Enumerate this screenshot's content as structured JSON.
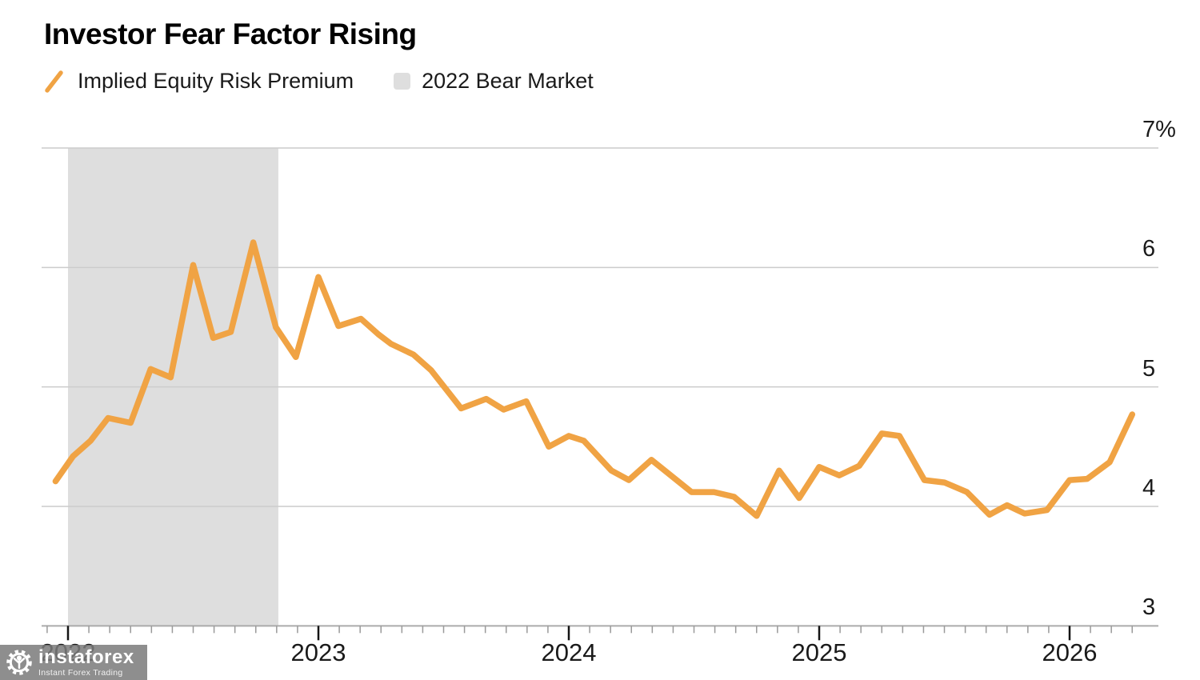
{
  "title": "Investor Fear Factor Rising",
  "legend": [
    {
      "label": "Implied Equity Risk Premium",
      "marker": "line-slash",
      "color": "#F0A344"
    },
    {
      "label": "2022 Bear Market",
      "marker": "square",
      "color": "#DEDEDE"
    }
  ],
  "watermark": {
    "brand": "instaforex",
    "tagline": "Instant Forex Trading",
    "icon": "gear-person-icon"
  },
  "chart_data": {
    "type": "line",
    "title": "Investor Fear Factor Rising",
    "grid": "horizontal",
    "legend_position": "top-left",
    "ylim": [
      3,
      7
    ],
    "xlim": [
      2021.89,
      2026.44
    ],
    "x_minor_ticks": "monthly",
    "colors": {
      "line": "#F0A344",
      "band": "#DEDEDE",
      "grid": "#CCCCCC",
      "axis": "#ABABAB",
      "major_tick": "#141414",
      "minor_tick": "#9A9A9A"
    },
    "y_ticks": [
      {
        "label": "7%",
        "value": 7
      },
      {
        "label": "6",
        "value": 6
      },
      {
        "label": "5",
        "value": 5
      },
      {
        "label": "4",
        "value": 4
      },
      {
        "label": "3",
        "value": 3
      }
    ],
    "x_ticks": [
      {
        "label": "2022",
        "year": 2022
      },
      {
        "label": "2023",
        "year": 2023
      },
      {
        "label": "2024",
        "year": 2024
      },
      {
        "label": "2025",
        "year": 2025
      },
      {
        "label": "2026",
        "year": 2026
      }
    ],
    "band": {
      "label": "2022 Bear Market",
      "from": 2022.0,
      "to": 2022.84
    },
    "series": [
      {
        "name": "Implied Equity Risk Premium",
        "unit": "%",
        "points": [
          [
            2021.95,
            4.21
          ],
          [
            2022.02,
            4.42
          ],
          [
            2022.09,
            4.55
          ],
          [
            2022.16,
            4.74
          ],
          [
            2022.25,
            4.7
          ],
          [
            2022.33,
            5.15
          ],
          [
            2022.41,
            5.08
          ],
          [
            2022.5,
            6.02
          ],
          [
            2022.58,
            5.41
          ],
          [
            2022.65,
            5.46
          ],
          [
            2022.74,
            6.21
          ],
          [
            2022.83,
            5.5
          ],
          [
            2022.91,
            5.25
          ],
          [
            2023.0,
            5.92
          ],
          [
            2023.08,
            5.51
          ],
          [
            2023.17,
            5.57
          ],
          [
            2023.24,
            5.44
          ],
          [
            2023.29,
            5.36
          ],
          [
            2023.38,
            5.27
          ],
          [
            2023.45,
            5.14
          ],
          [
            2023.57,
            4.82
          ],
          [
            2023.67,
            4.9
          ],
          [
            2023.74,
            4.81
          ],
          [
            2023.83,
            4.88
          ],
          [
            2023.92,
            4.5
          ],
          [
            2024.0,
            4.59
          ],
          [
            2024.06,
            4.55
          ],
          [
            2024.17,
            4.3
          ],
          [
            2024.24,
            4.22
          ],
          [
            2024.33,
            4.39
          ],
          [
            2024.49,
            4.12
          ],
          [
            2024.58,
            4.12
          ],
          [
            2024.66,
            4.08
          ],
          [
            2024.75,
            3.92
          ],
          [
            2024.84,
            4.3
          ],
          [
            2024.92,
            4.07
          ],
          [
            2025.0,
            4.33
          ],
          [
            2025.08,
            4.26
          ],
          [
            2025.16,
            4.34
          ],
          [
            2025.25,
            4.61
          ],
          [
            2025.32,
            4.59
          ],
          [
            2025.42,
            4.22
          ],
          [
            2025.5,
            4.2
          ],
          [
            2025.59,
            4.12
          ],
          [
            2025.68,
            3.93
          ],
          [
            2025.75,
            4.01
          ],
          [
            2025.82,
            3.94
          ],
          [
            2025.91,
            3.97
          ],
          [
            2026.0,
            4.22
          ],
          [
            2026.07,
            4.23
          ],
          [
            2026.16,
            4.37
          ],
          [
            2026.25,
            4.77
          ]
        ]
      }
    ]
  }
}
